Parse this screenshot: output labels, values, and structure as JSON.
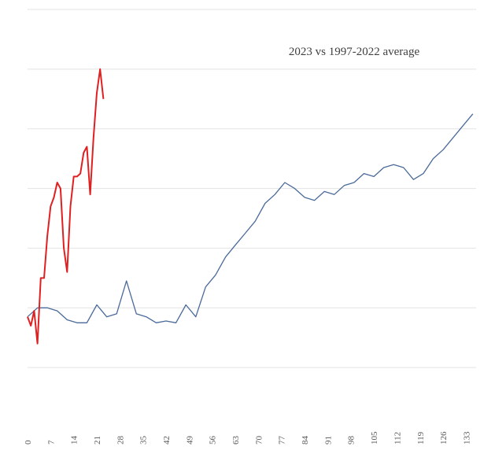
{
  "chart_data": {
    "type": "line",
    "title": "2023 vs 1997-2022 average",
    "xlabel": "",
    "ylabel": "",
    "grid": true,
    "legend": "none",
    "xlim": [
      0,
      136
    ],
    "ylim": [
      0,
      7
    ],
    "x_tick_labels": [
      "0",
      "7",
      "14",
      "21",
      "28",
      "35",
      "42",
      "49",
      "56",
      "63",
      "70",
      "77",
      "84",
      "91",
      "98",
      "105",
      "112",
      "119",
      "126",
      "133"
    ],
    "y_tick_labels": [],
    "colors": {
      "series_2023": "#e02020",
      "series_average": "#4a6a9a",
      "grid": "#e3e3e3"
    },
    "series": [
      {
        "x": [
          0,
          1,
          2,
          3,
          4,
          5,
          6,
          7,
          8,
          9,
          10,
          11,
          12,
          13,
          14,
          15,
          16,
          17,
          18,
          19,
          20,
          21,
          22,
          23
        ],
        "values": [
          1.85,
          1.7,
          1.95,
          1.4,
          2.5,
          2.5,
          3.2,
          3.7,
          3.85,
          4.1,
          4.0,
          3.0,
          2.6,
          3.7,
          4.2,
          4.2,
          4.25,
          4.6,
          4.7,
          3.9,
          4.85,
          5.6,
          6.0,
          5.5
        ]
      },
      {
        "x": [
          0,
          3,
          6,
          9,
          12,
          15,
          18,
          21,
          24,
          27,
          30,
          33,
          36,
          39,
          42,
          45,
          48,
          51,
          54,
          57,
          60,
          63,
          66,
          69,
          72,
          75,
          78,
          81,
          84,
          87,
          90,
          93,
          96,
          99,
          102,
          105,
          108,
          111,
          114,
          117,
          120,
          123,
          126,
          129,
          132,
          135
        ],
        "values": [
          1.85,
          2.0,
          2.0,
          1.95,
          1.8,
          1.75,
          1.75,
          2.05,
          1.85,
          1.9,
          2.45,
          1.9,
          1.85,
          1.75,
          1.78,
          1.75,
          2.05,
          1.85,
          2.35,
          2.55,
          2.85,
          3.05,
          3.25,
          3.45,
          3.75,
          3.9,
          4.1,
          4.0,
          3.85,
          3.8,
          3.95,
          3.9,
          4.05,
          4.1,
          4.25,
          4.2,
          4.35,
          4.4,
          4.35,
          4.15,
          4.25,
          4.5,
          4.65,
          4.85,
          5.05,
          5.25
        ]
      }
    ]
  }
}
